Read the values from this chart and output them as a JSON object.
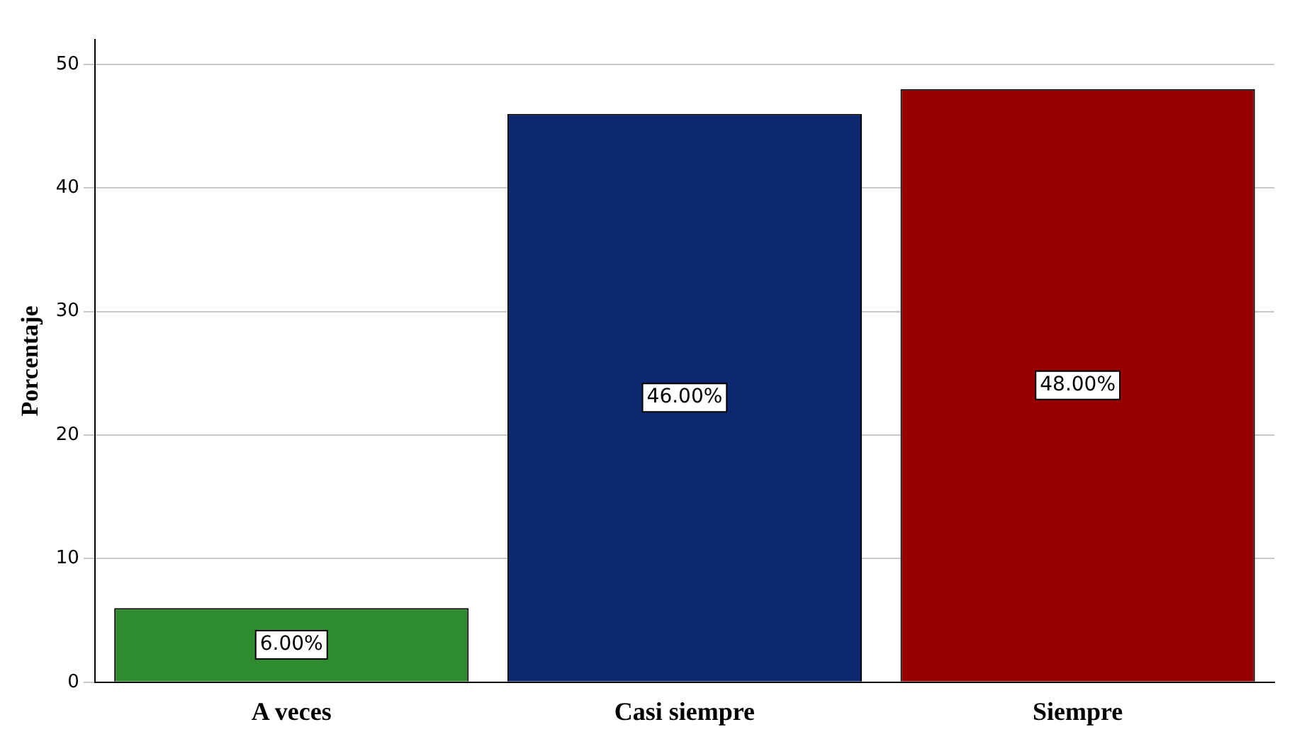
{
  "chart_data": {
    "type": "bar",
    "ylabel": "Porcentaje",
    "categories": [
      "A veces",
      "Casi siempre",
      "Siempre"
    ],
    "values": [
      6,
      46,
      48
    ],
    "colors": [
      "#2e8b2e",
      "#0b2870",
      "#990000"
    ],
    "value_labels": [
      "6.00%",
      "46.00%",
      "48.00%"
    ],
    "ylim": [
      0,
      52
    ],
    "yticks": [
      0,
      10,
      20,
      30,
      40,
      50
    ],
    "grid": "y"
  }
}
